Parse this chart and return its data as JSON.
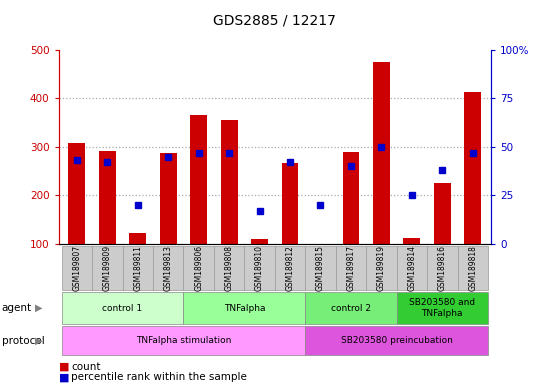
{
  "title": "GDS2885 / 12217",
  "samples": [
    "GSM189807",
    "GSM189809",
    "GSM189811",
    "GSM189813",
    "GSM189806",
    "GSM189808",
    "GSM189810",
    "GSM189812",
    "GSM189815",
    "GSM189817",
    "GSM189819",
    "GSM189814",
    "GSM189816",
    "GSM189818"
  ],
  "bar_heights": [
    307,
    292,
    122,
    287,
    365,
    355,
    110,
    267,
    100,
    290,
    475,
    113,
    225,
    413
  ],
  "percentile_values": [
    43,
    42,
    20,
    45,
    47,
    47,
    17,
    42,
    20,
    40,
    50,
    25,
    38,
    47
  ],
  "ylim_left": [
    100,
    500
  ],
  "ylim_right": [
    0,
    100
  ],
  "left_ticks": [
    100,
    200,
    300,
    400,
    500
  ],
  "right_ticks": [
    0,
    25,
    50,
    75,
    100
  ],
  "right_tick_labels": [
    "0",
    "25",
    "50",
    "75",
    "100%"
  ],
  "bar_color": "#cc0000",
  "percentile_color": "#0000cc",
  "agent_groups": [
    {
      "label": "control 1",
      "start": 0,
      "end": 4,
      "color": "#ccffcc"
    },
    {
      "label": "TNFalpha",
      "start": 4,
      "end": 8,
      "color": "#99ff99"
    },
    {
      "label": "control 2",
      "start": 8,
      "end": 11,
      "color": "#77ee77"
    },
    {
      "label": "SB203580 and\nTNFalpha",
      "start": 11,
      "end": 14,
      "color": "#33cc33"
    }
  ],
  "protocol_groups": [
    {
      "label": "TNFalpha stimulation",
      "start": 0,
      "end": 8,
      "color": "#ff99ff"
    },
    {
      "label": "SB203580 preincubation",
      "start": 8,
      "end": 14,
      "color": "#dd55dd"
    }
  ],
  "left_axis_color": "#cc0000",
  "right_axis_color": "#0000cc",
  "dotted_line_color": "#aaaaaa",
  "sample_box_color": "#cccccc",
  "sample_box_edge": "#999999"
}
